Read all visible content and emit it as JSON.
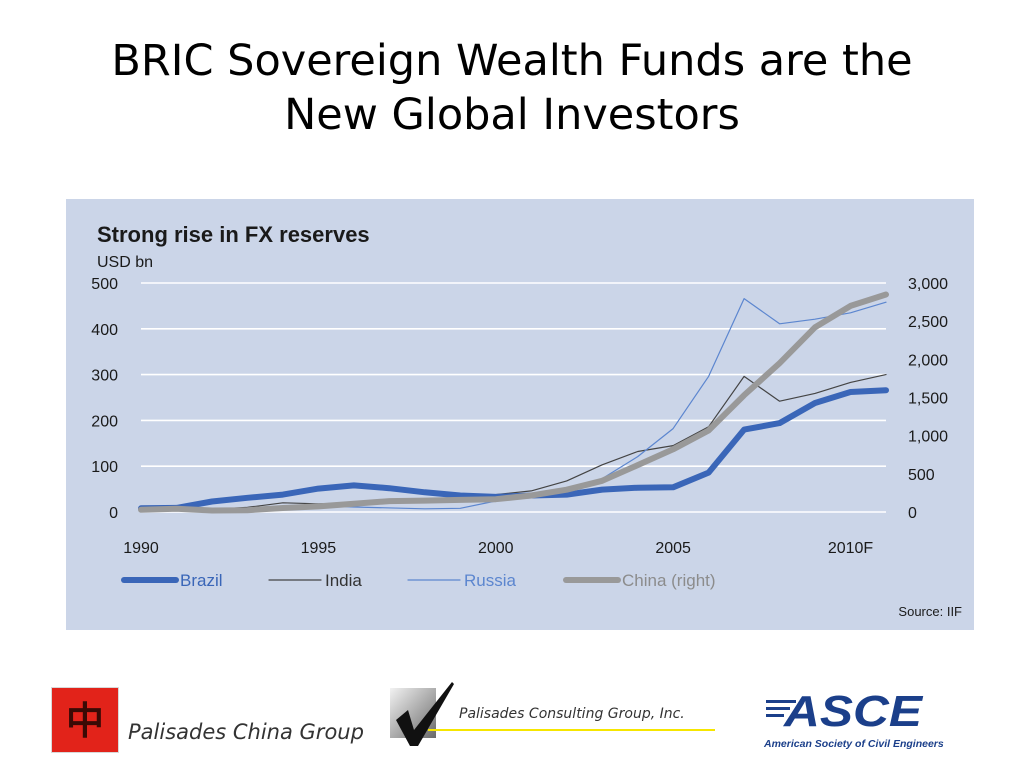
{
  "slide": {
    "title_line1": "BRIC Sovereign Wealth Funds are the",
    "title_line2": "New Global Investors"
  },
  "chart_data": {
    "type": "line",
    "title": "Strong rise in FX reserves",
    "ylabel": "USD bn",
    "source": "Source: IIF",
    "legend_position": "bottom",
    "x": [
      1990,
      1991,
      1992,
      1993,
      1994,
      1995,
      1996,
      1997,
      1998,
      1999,
      2000,
      2001,
      2002,
      2003,
      2004,
      2005,
      2006,
      2007,
      2008,
      2009,
      2010,
      2011
    ],
    "x_ticks": [
      1990,
      1995,
      2000,
      2005,
      2010
    ],
    "x_tick_labels": [
      "1990",
      "1995",
      "2000",
      "2005",
      "2010F"
    ],
    "ylim_left": [
      0,
      500
    ],
    "yticks_left": [
      "0",
      "100",
      "200",
      "300",
      "400",
      "500"
    ],
    "ylim_right": [
      0,
      3000
    ],
    "yticks_right": [
      "0",
      "500",
      "1,000",
      "1,500",
      "2,000",
      "2,500",
      "3,000"
    ],
    "grid": true,
    "series": [
      {
        "name": "Brazil",
        "axis": "left",
        "color": "#3a66b8",
        "width": 6,
        "values": [
          8,
          9,
          23,
          31,
          38,
          51,
          58,
          52,
          43,
          36,
          33,
          36,
          38,
          49,
          53,
          54,
          86,
          180,
          194,
          238,
          262,
          266
        ]
      },
      {
        "name": "India",
        "axis": "left",
        "color": "#444444",
        "width": 1.2,
        "values": [
          2,
          4,
          6,
          10,
          20,
          18,
          20,
          25,
          27,
          33,
          38,
          46,
          68,
          103,
          132,
          145,
          186,
          296,
          242,
          259,
          283,
          300
        ]
      },
      {
        "name": "Russia",
        "axis": "left",
        "color": "#5c86cf",
        "width": 1.2,
        "values": null,
        "x": [
          1990,
          1993,
          1995,
          1996,
          1998,
          1999,
          2000,
          2001,
          2002,
          2003,
          2004,
          2005,
          2006,
          2007,
          2008,
          2009,
          2010,
          2011
        ],
        "y": [
          2,
          4,
          14,
          11,
          7,
          8,
          24,
          32,
          44,
          73,
          121,
          182,
          296,
          466,
          411,
          421,
          435,
          458
        ]
      },
      {
        "name": "China (right)",
        "axis": "right",
        "color": "#999999",
        "width": 6,
        "values": [
          30,
          43,
          20,
          23,
          53,
          74,
          107,
          143,
          149,
          158,
          168,
          216,
          292,
          409,
          615,
          822,
          1068,
          1530,
          1950,
          2420,
          2700,
          2850
        ]
      }
    ]
  },
  "logos": {
    "pcg_text": "Palisades China Group",
    "pcgi_text": "Palisades Consulting Group, Inc.",
    "asce_text": "ASCE",
    "asce_subtitle": "American Society of Civil Engineers",
    "pcg_glyph": "中"
  }
}
